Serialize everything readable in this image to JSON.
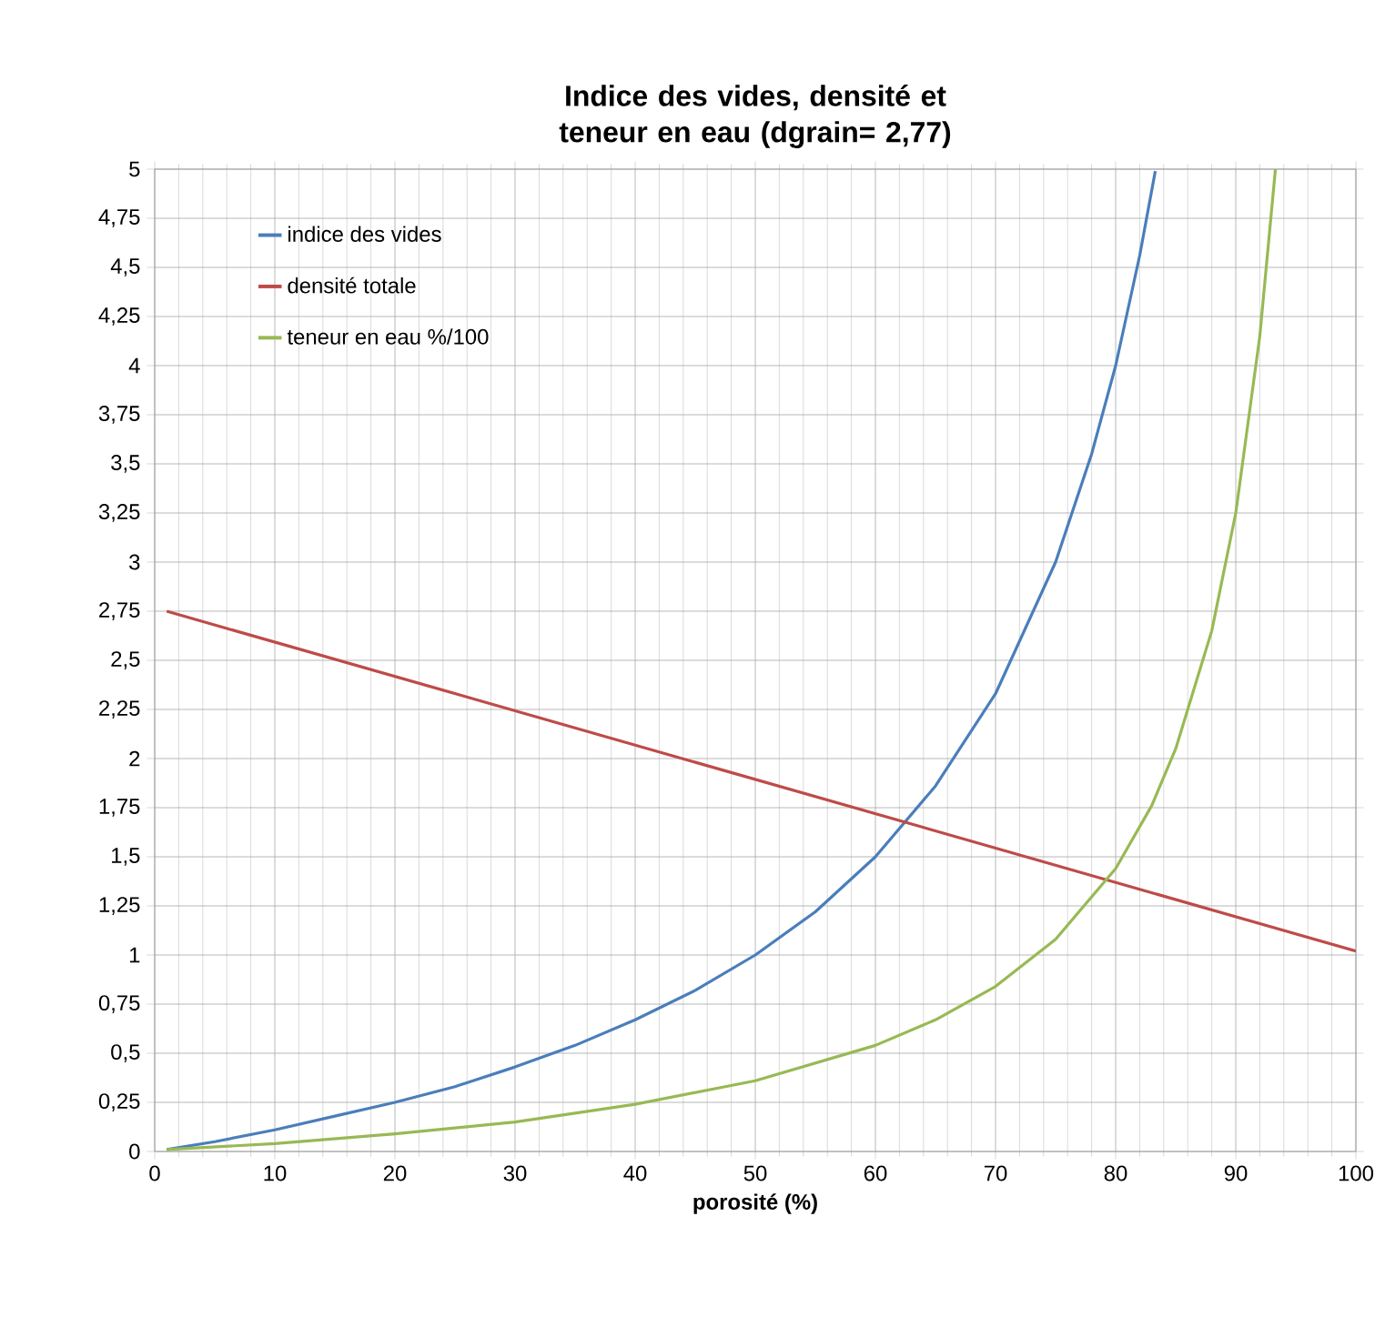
{
  "chart_data": {
    "type": "line",
    "title": "Indice des vides, densité et teneur en eau (dgrain= 2,77)",
    "xlabel": "porosité (%)",
    "xlim": [
      0,
      100
    ],
    "ylim": [
      0,
      5
    ],
    "xticks": [
      0,
      10,
      20,
      30,
      40,
      50,
      60,
      70,
      80,
      90,
      100
    ],
    "yticks": [
      {
        "value": 0,
        "label": "0"
      },
      {
        "value": 0.25,
        "label": "0,25"
      },
      {
        "value": 0.5,
        "label": "0,5"
      },
      {
        "value": 0.75,
        "label": "0,75"
      },
      {
        "value": 1,
        "label": "1"
      },
      {
        "value": 1.25,
        "label": "1,25"
      },
      {
        "value": 1.5,
        "label": "1,5"
      },
      {
        "value": 1.75,
        "label": "1,75"
      },
      {
        "value": 2,
        "label": "2"
      },
      {
        "value": 2.25,
        "label": "2,25"
      },
      {
        "value": 2.5,
        "label": "2,5"
      },
      {
        "value": 2.75,
        "label": "2,75"
      },
      {
        "value": 3,
        "label": "3"
      },
      {
        "value": 3.25,
        "label": "3,25"
      },
      {
        "value": 3.5,
        "label": "3,5"
      },
      {
        "value": 3.75,
        "label": "3,75"
      },
      {
        "value": 4,
        "label": "4"
      },
      {
        "value": 4.25,
        "label": "4,25"
      },
      {
        "value": 4.5,
        "label": "4,5"
      },
      {
        "value": 4.75,
        "label": "4,75"
      },
      {
        "value": 5,
        "label": "5"
      }
    ],
    "grid": true,
    "legend": "top left",
    "marker": "none",
    "line_style": "solid",
    "series": [
      {
        "name": "indice des vides",
        "color": "#4a7ebb",
        "x": [
          1,
          5,
          10,
          15,
          20,
          25,
          30,
          35,
          40,
          45,
          50,
          55,
          60,
          65,
          70,
          75,
          78,
          80,
          82,
          83.3
        ],
        "values": [
          0.01,
          0.05,
          0.11,
          0.18,
          0.25,
          0.33,
          0.43,
          0.54,
          0.67,
          0.82,
          1,
          1.22,
          1.5,
          1.86,
          2.33,
          3,
          3.55,
          4,
          4.56,
          4.99
        ]
      },
      {
        "name": "densité totale",
        "color": "#be4b48",
        "x": [
          1,
          100
        ],
        "values": [
          2.75,
          1.02
        ]
      },
      {
        "name": "teneur en eau %/100",
        "color": "#98b954",
        "x": [
          1,
          10,
          20,
          30,
          40,
          50,
          60,
          65,
          70,
          75,
          80,
          83,
          85,
          88,
          90,
          92,
          93.3
        ],
        "values": [
          0.01,
          0.04,
          0.09,
          0.15,
          0.24,
          0.36,
          0.54,
          0.67,
          0.84,
          1.08,
          1.44,
          1.76,
          2.05,
          2.65,
          3.25,
          4.15,
          5.0
        ]
      }
    ]
  }
}
